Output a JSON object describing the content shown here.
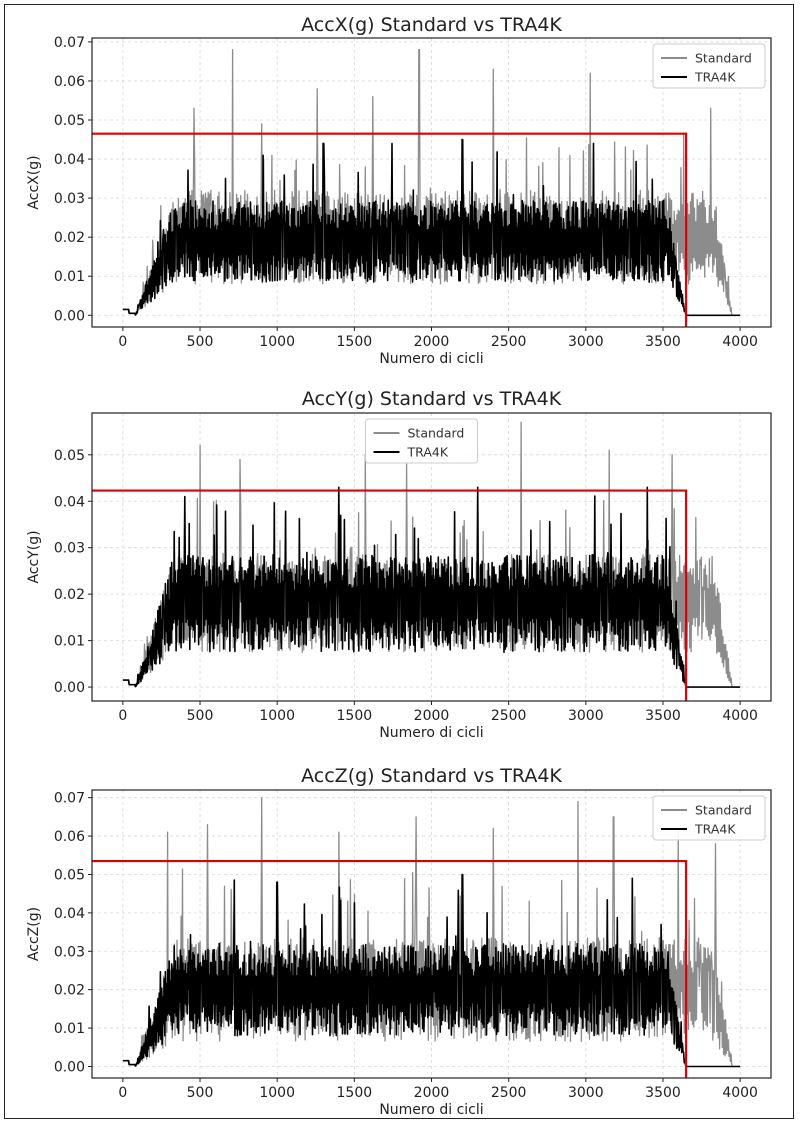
{
  "chart_data": [
    {
      "type": "line",
      "title": "AccX(g)  Standard vs TRA4K",
      "xlabel": "Numero di cicli",
      "ylabel": "AccX(g)",
      "xlim": [
        -200,
        4200
      ],
      "ylim": [
        -0.003,
        0.071
      ],
      "xticks": [
        0,
        500,
        1000,
        1500,
        2000,
        2500,
        3000,
        3500,
        4000
      ],
      "xtick_labels": [
        "0",
        "500",
        "1000",
        "1500",
        "2000",
        "2500",
        "3000",
        "3500",
        "4000"
      ],
      "yticks": [
        0.0,
        0.01,
        0.02,
        0.03,
        0.04,
        0.05,
        0.06,
        0.07
      ],
      "ytick_labels": [
        "0.00",
        "0.01",
        "0.02",
        "0.03",
        "0.04",
        "0.05",
        "0.06",
        "0.07"
      ],
      "grid": true,
      "legend_position": "top-right",
      "legend": [
        "Standard",
        "TRA4K"
      ],
      "series": [
        {
          "name": "Standard",
          "color": "#8c8c8c",
          "start": 0,
          "end": 3950,
          "baseline": 0.02,
          "noise": 0.008,
          "peaks": [
            [
              460,
              0.053
            ],
            [
              710,
              0.068
            ],
            [
              900,
              0.049
            ],
            [
              1260,
              0.058
            ],
            [
              1620,
              0.056
            ],
            [
              1920,
              0.068
            ],
            [
              2400,
              0.063
            ],
            [
              3030,
              0.062
            ],
            [
              3810,
              0.053
            ]
          ],
          "color_name": "gray"
        },
        {
          "name": "TRA4K",
          "color": "#000000",
          "start": 0,
          "end": 3650,
          "baseline": 0.019,
          "noise": 0.007,
          "peaks": [
            [
              1300,
              0.044
            ],
            [
              2200,
              0.045
            ],
            [
              3050,
              0.044
            ]
          ],
          "color_name": "black"
        }
      ],
      "threshold": {
        "y": 0.0465,
        "x_end": 3650,
        "color": "#dd0000"
      }
    },
    {
      "type": "line",
      "title": "AccY(g)  Standard vs TRA4K",
      "xlabel": "Numero di cicli",
      "ylabel": "AccY(g)",
      "xlim": [
        -200,
        4200
      ],
      "ylim": [
        -0.003,
        0.059
      ],
      "xticks": [
        0,
        500,
        1000,
        1500,
        2000,
        2500,
        3000,
        3500,
        4000
      ],
      "xtick_labels": [
        "0",
        "500",
        "1000",
        "1500",
        "2000",
        "2500",
        "3000",
        "3500",
        "4000"
      ],
      "yticks": [
        0.0,
        0.01,
        0.02,
        0.03,
        0.04,
        0.05
      ],
      "ytick_labels": [
        "0.00",
        "0.01",
        "0.02",
        "0.03",
        "0.04",
        "0.05"
      ],
      "grid": true,
      "legend_position": "top-center",
      "legend": [
        "Standard",
        "TRA4K"
      ],
      "series": [
        {
          "name": "Standard",
          "color": "#8c8c8c",
          "start": 0,
          "end": 3950,
          "baseline": 0.018,
          "noise": 0.007,
          "peaks": [
            [
              500,
              0.052
            ],
            [
              760,
              0.049
            ],
            [
              1570,
              0.05
            ],
            [
              1840,
              0.048
            ],
            [
              2580,
              0.057
            ],
            [
              3150,
              0.051
            ],
            [
              3560,
              0.05
            ]
          ],
          "color_name": "gray"
        },
        {
          "name": "TRA4K",
          "color": "#000000",
          "start": 0,
          "end": 3650,
          "baseline": 0.018,
          "noise": 0.007,
          "peaks": [
            [
              400,
              0.041
            ],
            [
              1400,
              0.043
            ],
            [
              2300,
              0.043
            ],
            [
              3400,
              0.043
            ]
          ],
          "color_name": "black"
        }
      ],
      "threshold": {
        "y": 0.0423,
        "x_end": 3650,
        "color": "#dd0000"
      }
    },
    {
      "type": "line",
      "title": "AccZ(g)  Standard vs TRA4K",
      "xlabel": "Numero di cicli",
      "ylabel": "AccZ(g)",
      "xlim": [
        -200,
        4200
      ],
      "ylim": [
        -0.003,
        0.072
      ],
      "xticks": [
        0,
        500,
        1000,
        1500,
        2000,
        2500,
        3000,
        3500,
        4000
      ],
      "xtick_labels": [
        "0",
        "500",
        "1000",
        "1500",
        "2000",
        "2500",
        "3000",
        "3500",
        "4000"
      ],
      "yticks": [
        0.0,
        0.01,
        0.02,
        0.03,
        0.04,
        0.05,
        0.06,
        0.07
      ],
      "ytick_labels": [
        "0.00",
        "0.01",
        "0.02",
        "0.03",
        "0.04",
        "0.05",
        "0.06",
        "0.07"
      ],
      "grid": true,
      "legend_position": "top-right",
      "legend": [
        "Standard",
        "TRA4K"
      ],
      "series": [
        {
          "name": "Standard",
          "color": "#8c8c8c",
          "start": 0,
          "end": 3950,
          "baseline": 0.02,
          "noise": 0.009,
          "peaks": [
            [
              290,
              0.061
            ],
            [
              550,
              0.063
            ],
            [
              900,
              0.07
            ],
            [
              1400,
              0.061
            ],
            [
              1900,
              0.065
            ],
            [
              2400,
              0.062
            ],
            [
              2950,
              0.069
            ],
            [
              3180,
              0.065
            ],
            [
              3600,
              0.062
            ],
            [
              3840,
              0.058
            ]
          ],
          "color_name": "gray"
        },
        {
          "name": "TRA4K",
          "color": "#000000",
          "start": 0,
          "end": 3650,
          "baseline": 0.02,
          "noise": 0.008,
          "peaks": [
            [
              1000,
              0.048
            ],
            [
              2200,
              0.05
            ],
            [
              3300,
              0.049
            ]
          ],
          "color_name": "black"
        }
      ],
      "threshold": {
        "y": 0.0535,
        "x_end": 3650,
        "color": "#dd0000"
      }
    }
  ]
}
